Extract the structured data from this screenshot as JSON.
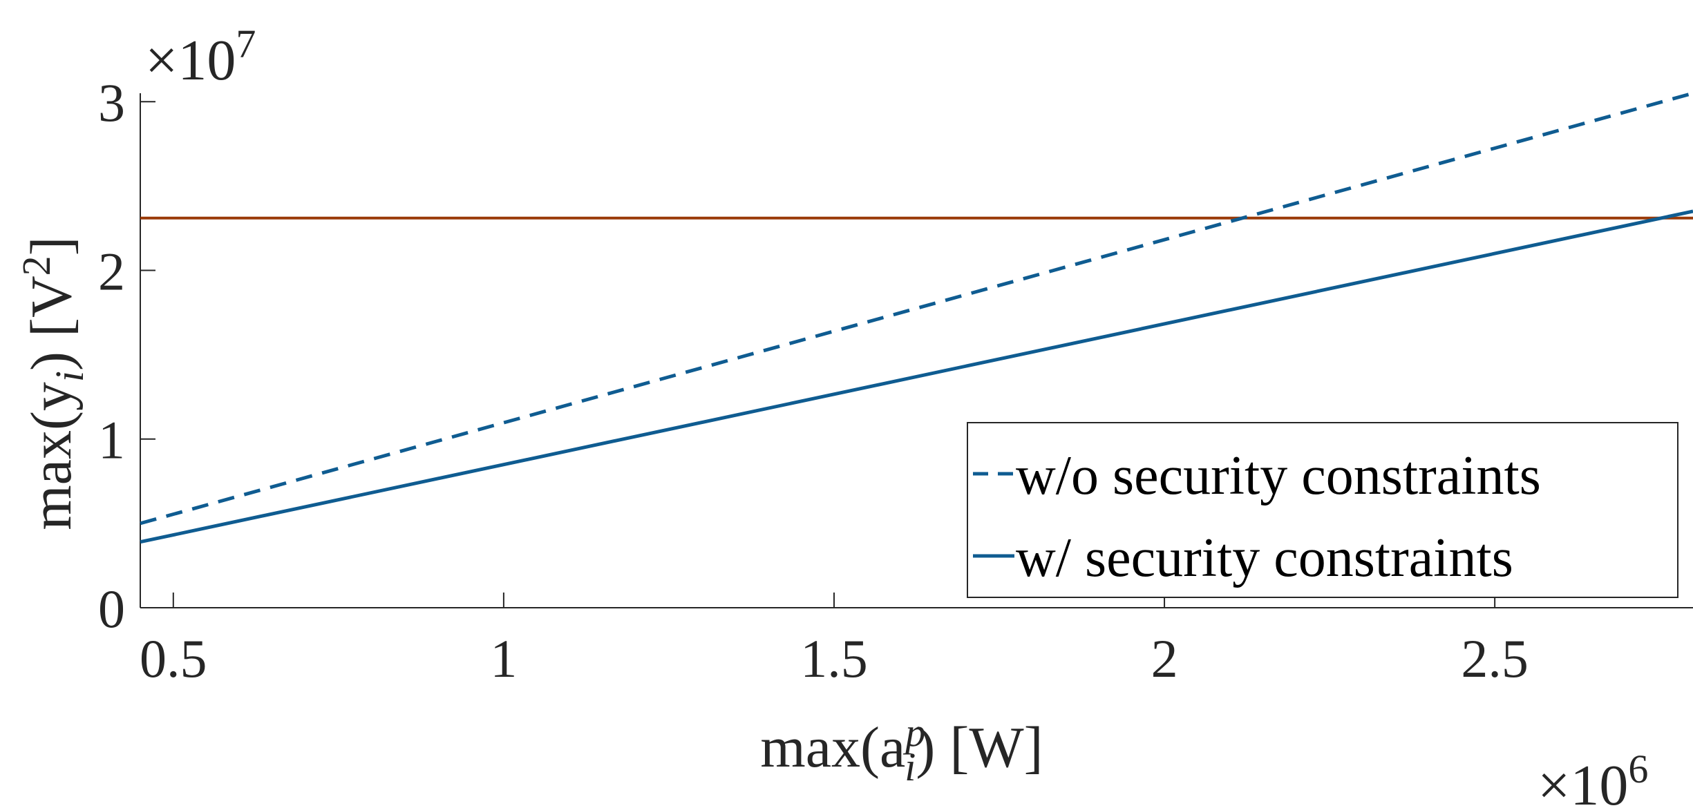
{
  "chart_data": {
    "type": "line",
    "xlabel": {
      "base": "max(a",
      "sup": "p",
      "sub": "i",
      "end": ")  [W]"
    },
    "ylabel": {
      "base": "max(y",
      "sub": "i",
      "mid": ")  [V",
      "sup": "2",
      "end": "]"
    },
    "x_exponent": {
      "prefix": "×10",
      "power": "6"
    },
    "y_exponent": {
      "prefix": "×10",
      "power": "7"
    },
    "xlim": [
      0.45,
      2.8
    ],
    "ylim": [
      0,
      3.05
    ],
    "x_ticks": [
      0.5,
      1,
      1.5,
      2,
      2.5
    ],
    "x_tick_labels": [
      "0.5",
      "1",
      "1.5",
      "2",
      "2.5"
    ],
    "y_ticks": [
      0,
      1,
      2,
      3
    ],
    "y_tick_labels": [
      "0",
      "1",
      "2",
      "3"
    ],
    "grid": false,
    "legend_position": "bottom-right",
    "series": [
      {
        "name": "w/o security constraints",
        "style": "dashed",
        "color": "#0f5c91",
        "x": [
          0.45,
          2.8
        ],
        "y": [
          0.5,
          3.05
        ]
      },
      {
        "name": "w/ security constraints",
        "style": "solid",
        "color": "#0f5c91",
        "x": [
          0.45,
          2.8
        ],
        "y": [
          0.39,
          2.35
        ]
      }
    ],
    "reference_line": {
      "style": "solid",
      "color": "#9a3a08",
      "y": 2.31
    }
  }
}
